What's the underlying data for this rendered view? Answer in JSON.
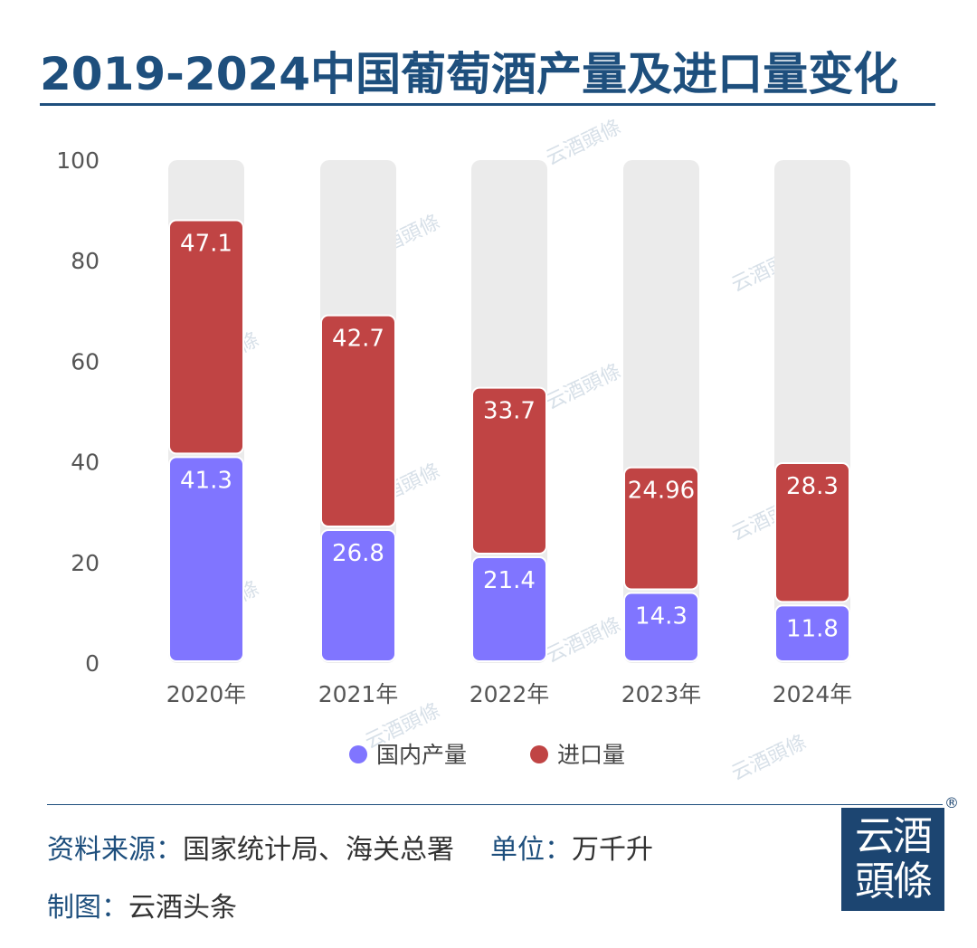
{
  "title": "2019-2024中国葡萄酒产量及进口量变化",
  "watermark_text": "云酒頭條",
  "colors": {
    "domestic": "#8075ff",
    "import": "#c04444",
    "background_bar": "#ebebeb",
    "title": "#1e4f7d"
  },
  "chart_data": {
    "type": "bar",
    "stacked": true,
    "categories": [
      "2020年",
      "2021年",
      "2022年",
      "2023年",
      "2024年"
    ],
    "series": [
      {
        "name": "国内产量",
        "values": [
          41.3,
          26.8,
          21.4,
          14.3,
          11.8
        ],
        "labels": [
          "41.3",
          "26.8",
          "21.4",
          "14.3",
          "11.8"
        ]
      },
      {
        "name": "进口量",
        "values": [
          47.1,
          42.7,
          33.7,
          24.96,
          28.3
        ],
        "labels": [
          "47.1",
          "42.7",
          "33.7",
          "24.96",
          "28.3"
        ]
      }
    ],
    "ylim": [
      0,
      100
    ],
    "yticks": [
      0,
      20,
      40,
      60,
      80,
      100
    ],
    "legend": "bottom"
  },
  "footer": {
    "source_label": "资料来源：",
    "source_value": "国家统计局、海关总署",
    "unit_label": "单位：",
    "unit_value": "万千升",
    "maker_label": "制图：",
    "maker_value": "云酒头条"
  },
  "logo": {
    "line1": "云酒",
    "line2": "頭條",
    "mark": "®"
  }
}
